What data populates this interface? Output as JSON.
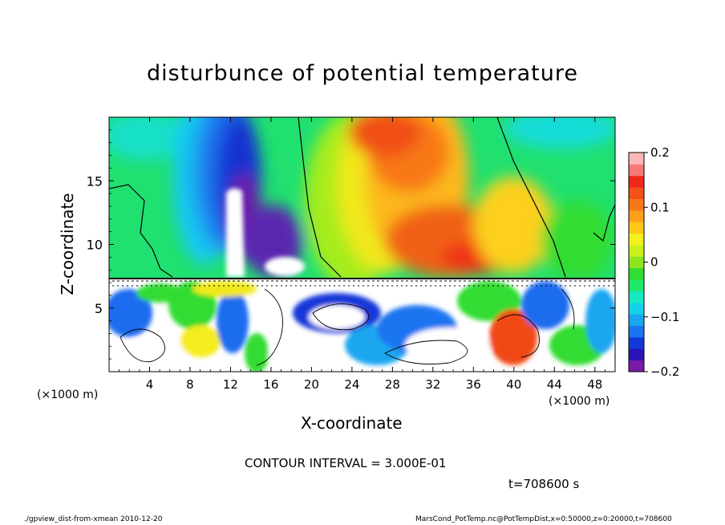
{
  "title": "disturbunce of potential temperature",
  "contour_interval": "CONTOUR INTERVAL = 3.000E-01",
  "time_label": "t=708600 s",
  "footer_left": "./gpview_dist-from-xmean  2010-12-20",
  "footer_right": "MarsCond_PotTemp.nc@PotTempDist,x=0:50000,z=0:20000,t=708600",
  "chart_data": {
    "type": "heatmap",
    "title": "disturbunce of potential temperature",
    "xlabel": "X-coordinate",
    "ylabel": "Z-coordinate",
    "x_unit": "(×1000 m)",
    "x_unit_right": "(×1000 m)",
    "xlim": [
      0,
      50
    ],
    "ylim": [
      0,
      20
    ],
    "x_ticks": [
      4,
      8,
      12,
      16,
      20,
      24,
      28,
      32,
      36,
      40,
      44,
      48
    ],
    "x_tick_labels": [
      "4",
      "8",
      "12",
      "16",
      "20",
      "24",
      "28",
      "32",
      "36",
      "40",
      "44",
      "48"
    ],
    "y_ticks": [
      5,
      10,
      15
    ],
    "y_tick_labels": [
      "5",
      "10",
      "15"
    ],
    "colorbar": {
      "range": [
        -0.2,
        0.2
      ],
      "ticks": [
        0.2,
        0.1,
        0,
        -0.1,
        -0.2
      ],
      "tick_labels": [
        "0.2",
        "0.1",
        "0",
        "−0.1",
        "−0.2"
      ],
      "colors": [
        "#7a1aa6",
        "#2a14b8",
        "#1238d8",
        "#1c74f0",
        "#1aa6f0",
        "#16d2e8",
        "#16e8c2",
        "#20e86a",
        "#30dc30",
        "#8ae61e",
        "#c8f01c",
        "#f4f01c",
        "#fcc81a",
        "#fca01a",
        "#f87818",
        "#f45018",
        "#f02818",
        "#f87878",
        "#fcb8b8"
      ]
    },
    "grid": false
  }
}
